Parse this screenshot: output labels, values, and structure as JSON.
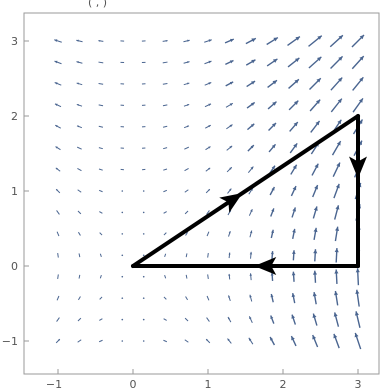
{
  "top_fragment": "(  ,  )",
  "chart_data": {
    "type": "vector_field",
    "title": "",
    "xlabel": "",
    "ylabel": "",
    "xlim": [
      -1.5,
      3.3
    ],
    "ylim": [
      -1.3,
      3.3
    ],
    "xticks": [
      -1,
      0,
      1,
      2,
      3
    ],
    "yticks": [
      -1,
      0,
      1,
      2,
      3
    ],
    "grid": false,
    "field": {
      "x_range": [
        -1,
        3
      ],
      "y_range": [
        -1,
        3
      ],
      "step": 0.2857,
      "color": "#4a6590",
      "description_expression": "F(x,y) = (x*y, x^2) direction field, length grows with |F|"
    },
    "path": {
      "color": "#000000",
      "vertices": [
        [
          0,
          0
        ],
        [
          3,
          2
        ],
        [
          3,
          0
        ],
        [
          0,
          0
        ]
      ],
      "arrowheads_at": [
        [
          1.35,
          0.9
        ],
        [
          3,
          1.3
        ],
        [
          1.75,
          0
        ]
      ]
    }
  }
}
